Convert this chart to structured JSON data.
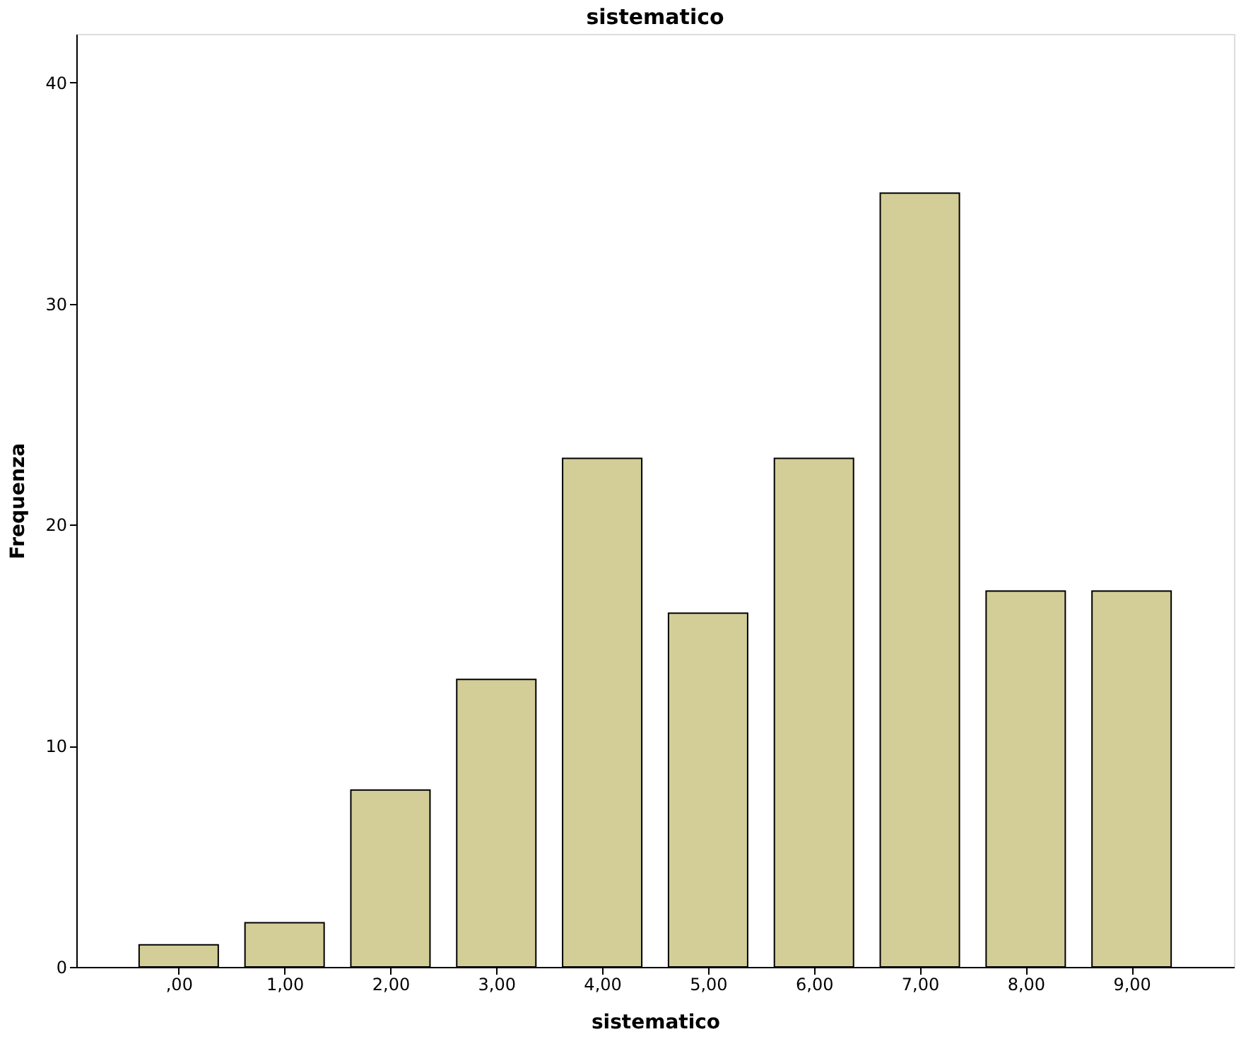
{
  "chart_data": {
    "type": "bar",
    "title": "sistematico",
    "xlabel": "sistematico",
    "ylabel": "Frequenza",
    "categories": [
      ",00",
      "1,00",
      "2,00",
      "3,00",
      "4,00",
      "5,00",
      "6,00",
      "7,00",
      "8,00",
      "9,00"
    ],
    "values": [
      1,
      2,
      8,
      13,
      23,
      16,
      23,
      35,
      17,
      17
    ],
    "color": "#d3ce97",
    "ylim": [
      0,
      42.2
    ],
    "yticks": [
      0,
      10,
      20,
      30,
      40
    ],
    "grid": false
  }
}
